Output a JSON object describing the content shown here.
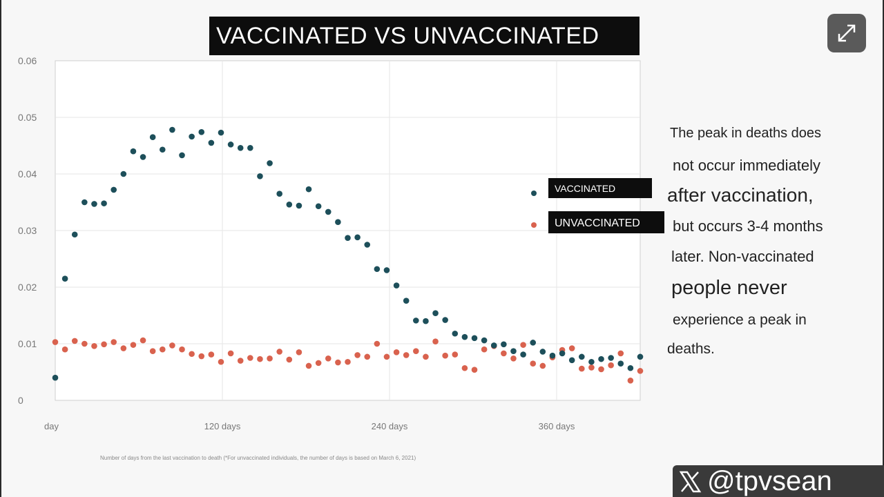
{
  "title": "VACCINATED VS UNVACCINATED",
  "expand_icon": "expand-icon",
  "caption": [
    "The peak in deaths does",
    "not occur immediately",
    "after vaccination,",
    "but occurs 3-4 months",
    "later. Non-vaccinated",
    "people never",
    "experience a peak in",
    "deaths."
  ],
  "watermark": "@tpvsean",
  "colors": {
    "vaccinated": "#1d4f5a",
    "unvaccinated": "#d9624e",
    "title_bg": "#0d0d0d",
    "grid": "#e6e6e6"
  },
  "chart_data": {
    "type": "scatter",
    "title": "",
    "xlabel": "Number of days from the last vaccination to death (*For unvaccinated individuals, the number of days is based on March 6, 2021)",
    "ylabel": "",
    "xlim": [
      0,
      420
    ],
    "ylim": [
      0,
      0.06
    ],
    "x_ticks": [
      0,
      120,
      240,
      360
    ],
    "x_tick_labels": [
      "day",
      "120 days",
      "240 days",
      "360 days"
    ],
    "y_ticks": [
      0,
      0.01,
      0.02,
      0.03,
      0.04,
      0.05,
      0.06
    ],
    "y_tick_labels": [
      "0",
      "0.01",
      "0.02",
      "0.03",
      "0.04",
      "0.05",
      "0.06"
    ],
    "grid": true,
    "legend_position": "right",
    "series": [
      {
        "name": "VACCINATED",
        "x": [
          0,
          7,
          14,
          21,
          28,
          35,
          42,
          49,
          56,
          63,
          70,
          77,
          84,
          91,
          98,
          105,
          112,
          119,
          126,
          133,
          140,
          147,
          154,
          161,
          168,
          175,
          182,
          189,
          196,
          203,
          210,
          217,
          224,
          231,
          238,
          245,
          252,
          259,
          266,
          273,
          280,
          287,
          294,
          301,
          308,
          315,
          322,
          329,
          336,
          343,
          350,
          357,
          364,
          371,
          378,
          385,
          392,
          399,
          406,
          413,
          420
        ],
        "y": [
          0.004,
          0.0215,
          0.0293,
          0.035,
          0.0347,
          0.0348,
          0.0372,
          0.04,
          0.044,
          0.043,
          0.0465,
          0.0443,
          0.0478,
          0.0433,
          0.0466,
          0.0474,
          0.0455,
          0.0473,
          0.0452,
          0.0446,
          0.0446,
          0.0396,
          0.0419,
          0.0365,
          0.0346,
          0.0344,
          0.0373,
          0.0343,
          0.0333,
          0.0315,
          0.0287,
          0.0288,
          0.0275,
          0.0232,
          0.023,
          0.0203,
          0.0176,
          0.0141,
          0.014,
          0.0154,
          0.0142,
          0.0118,
          0.0112,
          0.011,
          0.0106,
          0.0097,
          0.0099,
          0.0087,
          0.0081,
          0.0102,
          0.0086,
          0.0079,
          0.0083,
          0.0071,
          0.0077,
          0.0068,
          0.0073,
          0.0075,
          0.0065,
          0.0057,
          0.0077
        ]
      },
      {
        "name": "UNVACCINATED",
        "x": [
          0,
          7,
          14,
          21,
          28,
          35,
          42,
          49,
          56,
          63,
          70,
          77,
          84,
          91,
          98,
          105,
          112,
          119,
          126,
          133,
          140,
          147,
          154,
          161,
          168,
          175,
          182,
          189,
          196,
          203,
          210,
          217,
          224,
          231,
          238,
          245,
          252,
          259,
          266,
          273,
          280,
          287,
          294,
          301,
          308,
          315,
          322,
          329,
          336,
          343,
          350,
          357,
          364,
          371,
          378,
          385,
          392,
          399,
          406,
          413,
          420
        ],
        "y": [
          0.0103,
          0.009,
          0.0105,
          0.01,
          0.0096,
          0.0099,
          0.0103,
          0.0092,
          0.0098,
          0.0106,
          0.0087,
          0.009,
          0.0097,
          0.009,
          0.0082,
          0.0078,
          0.0081,
          0.0068,
          0.0083,
          0.007,
          0.0075,
          0.0073,
          0.0074,
          0.0086,
          0.0072,
          0.0085,
          0.0061,
          0.0066,
          0.0074,
          0.0067,
          0.0068,
          0.008,
          0.0077,
          0.01,
          0.0077,
          0.0085,
          0.008,
          0.0087,
          0.0077,
          0.0104,
          0.0079,
          0.0081,
          0.0057,
          0.0054,
          0.009,
          0.0096,
          0.0083,
          0.0074,
          0.0098,
          0.0065,
          0.0061,
          0.0076,
          0.0089,
          0.0092,
          0.0056,
          0.0058,
          0.0055,
          0.0062,
          0.0083,
          0.0035,
          0.0052
        ]
      }
    ]
  }
}
